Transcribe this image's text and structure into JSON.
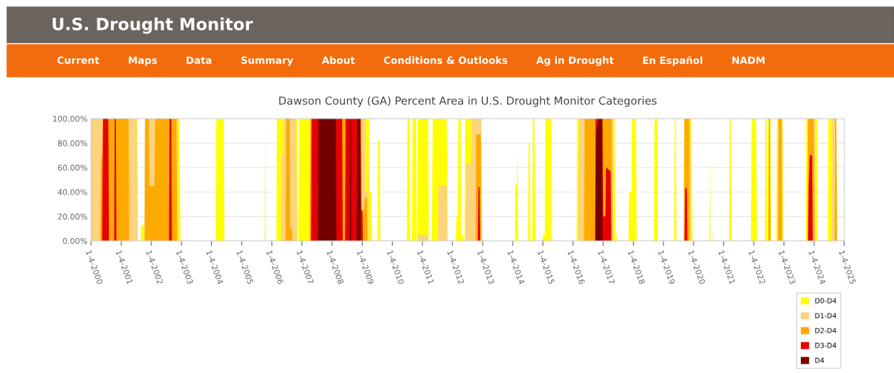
{
  "chart_data": {
    "type": "area",
    "title": "Dawson County (GA) Percent Area in U.S. Drought Monitor Categories",
    "annotations": [
      "U.S. Drought Monitor",
      "Current",
      "Maps",
      "Data",
      "Summary",
      "About",
      "Conditions & Outlooks",
      "Ag in Drought",
      "En Español",
      "NADM"
    ],
    "xlim": [
      "2000-01-04",
      "2025-01-04"
    ],
    "xticks": [
      {
        "value": "2000-01-04",
        "label": "1-4-2000"
      },
      {
        "value": "2001-01-04",
        "label": "1-4-2001"
      },
      {
        "value": "2002-01-04",
        "label": "1-4-2002"
      },
      {
        "value": "2003-01-04",
        "label": "1-4-2003"
      },
      {
        "value": "2004-01-04",
        "label": "1-4-2004"
      },
      {
        "value": "2005-01-04",
        "label": "1-4-2005"
      },
      {
        "value": "2006-01-04",
        "label": "1-4-2006"
      },
      {
        "value": "2007-01-04",
        "label": "1-4-2007"
      },
      {
        "value": "2008-01-04",
        "label": "1-4-2008"
      },
      {
        "value": "2009-01-04",
        "label": "1-4-2009"
      },
      {
        "value": "2010-01-04",
        "label": "1-4-2010"
      },
      {
        "value": "2011-01-04",
        "label": "1-4-2011"
      },
      {
        "value": "2012-01-04",
        "label": "1-4-2012"
      },
      {
        "value": "2013-01-04",
        "label": "1-4-2013"
      },
      {
        "value": "2014-01-04",
        "label": "1-4-2014"
      },
      {
        "value": "2015-01-04",
        "label": "1-4-2015"
      },
      {
        "value": "2016-01-04",
        "label": "1-4-2016"
      },
      {
        "value": "2017-01-04",
        "label": "1-4-2017"
      },
      {
        "value": "2018-01-04",
        "label": "1-4-2018"
      },
      {
        "value": "2019-01-04",
        "label": "1-4-2019"
      },
      {
        "value": "2020-01-04",
        "label": "1-4-2020"
      },
      {
        "value": "2021-01-04",
        "label": "1-4-2021"
      },
      {
        "value": "2022-01-04",
        "label": "1-4-2022"
      },
      {
        "value": "2023-01-04",
        "label": "1-4-2023"
      },
      {
        "value": "2024-01-04",
        "label": "1-4-2024"
      },
      {
        "value": "2025-01-04",
        "label": "1-4-2025"
      }
    ],
    "ylim": [
      0,
      100
    ],
    "yticks": [
      {
        "value": 0,
        "label": "0.00%"
      },
      {
        "value": 20,
        "label": "20.00%"
      },
      {
        "value": 40,
        "label": "40.00%"
      },
      {
        "value": 60,
        "label": "60.00%"
      },
      {
        "value": 80,
        "label": "80.00%"
      },
      {
        "value": 100,
        "label": "100.00%"
      }
    ],
    "grid": "y",
    "legend": "bottom right",
    "series": [
      {
        "name": "D0-D4",
        "color": "#ffff00",
        "x": [
          "2000-01-04",
          "2001-07-20",
          "2001-07-27",
          "2001-08-28",
          "2001-09-04",
          "2001-10-16",
          "2001-10-23",
          "2002-12-10",
          "2002-12-24",
          "2004-02-24",
          "2004-03-02",
          "2004-03-16",
          "2004-06-01",
          "2004-06-08",
          "2005-10-11",
          "2005-10-18",
          "2005-10-25",
          "2006-02-28",
          "2006-03-07",
          "2006-11-07",
          "2006-11-14",
          "2006-11-21",
          "2006-11-28",
          "2009-03-31",
          "2009-04-07",
          "2009-04-28",
          "2009-05-05",
          "2009-07-07",
          "2009-07-14",
          "2009-08-04",
          "2009-08-11",
          "2010-06-29",
          "2010-07-06",
          "2010-08-03",
          "2010-08-10",
          "2010-08-31",
          "2010-09-07",
          "2010-10-19",
          "2010-10-26",
          "2010-11-02",
          "2010-11-09",
          "2011-03-15",
          "2011-03-22",
          "2011-04-26",
          "2011-05-03",
          "2011-05-10",
          "2011-10-25",
          "2011-11-01",
          "2011-11-08",
          "2012-02-14",
          "2012-02-21",
          "2012-03-06",
          "2012-03-13",
          "2012-04-10",
          "2012-04-17",
          "2012-05-08",
          "2012-05-15",
          "2012-05-29",
          "2012-06-05",
          "2012-12-18",
          "2012-12-25",
          "2014-01-28",
          "2014-02-04",
          "2014-02-25",
          "2014-03-04",
          "2014-03-11",
          "2014-07-08",
          "2014-07-15",
          "2014-07-29",
          "2014-08-05",
          "2014-08-26",
          "2014-09-02",
          "2014-09-23",
          "2014-09-30",
          "2014-10-07",
          "2014-12-30",
          "2015-01-06",
          "2015-01-27",
          "2015-02-03",
          "2015-04-14",
          "2015-04-21",
          "2016-02-16",
          "2016-02-23",
          "2017-05-23",
          "2017-05-30",
          "2017-06-13",
          "2017-06-20",
          "2017-11-07",
          "2017-11-14",
          "2017-12-12",
          "2017-12-19",
          "2018-02-06",
          "2018-02-13",
          "2018-09-11",
          "2018-09-18",
          "2018-10-23",
          "2018-10-30",
          "2019-05-14",
          "2019-05-21",
          "2019-06-04",
          "2019-06-11",
          "2019-09-03",
          "2019-09-10",
          "2019-12-10",
          "2019-12-17",
          "2019-12-24",
          "2020-07-14",
          "2020-07-21",
          "2020-07-28",
          "2020-08-25",
          "2020-09-01",
          "2020-09-08",
          "2021-03-09",
          "2021-03-16",
          "2021-03-30",
          "2021-04-06",
          "2021-04-13",
          "2021-11-30",
          "2021-12-07",
          "2022-02-01",
          "2022-02-08",
          "2022-02-15",
          "2022-05-17",
          "2022-05-24",
          "2022-06-07",
          "2022-06-14",
          "2022-06-21",
          "2022-06-28",
          "2022-07-26",
          "2022-08-02",
          "2022-10-04",
          "2022-10-11",
          "2022-12-20",
          "2022-12-27",
          "2023-09-26",
          "2023-10-03",
          "2024-02-13",
          "2024-02-20",
          "2024-06-18",
          "2024-06-25",
          "2024-10-01",
          "2024-10-08",
          "2024-12-31"
        ],
        "values": [
          100,
          100,
          0,
          0,
          13,
          13,
          100,
          100,
          0,
          0,
          97,
          100,
          100,
          0,
          0,
          100,
          0,
          0,
          100,
          100,
          0,
          0,
          100,
          100,
          40,
          40,
          0,
          0,
          82,
          82,
          0,
          0,
          100,
          100,
          0,
          0,
          100,
          100,
          0,
          0,
          100,
          100,
          0,
          0,
          50,
          100,
          100,
          75,
          0,
          0,
          20,
          20,
          100,
          100,
          5,
          5,
          0,
          0,
          100,
          100,
          0,
          0,
          47,
          47,
          76,
          0,
          0,
          80,
          80,
          0,
          0,
          100,
          100,
          20,
          0,
          0,
          5,
          5,
          100,
          100,
          0,
          0,
          100,
          100,
          5,
          5,
          0,
          0,
          40,
          40,
          100,
          100,
          0,
          0,
          100,
          100,
          0,
          0,
          100,
          100,
          0,
          0,
          100,
          100,
          46,
          0,
          0,
          72,
          0,
          0,
          10,
          0,
          0,
          100,
          100,
          5,
          0,
          0,
          100,
          100,
          30,
          0,
          0,
          100,
          100,
          0,
          0,
          100,
          100,
          0,
          0,
          100,
          100,
          0,
          0,
          100,
          100,
          0,
          0,
          100,
          100,
          0,
          0
        ]
      },
      {
        "name": "D1-D4",
        "color": "#fcd37f",
        "x": [
          "2000-01-04",
          "2001-07-10",
          "2001-07-17",
          "2001-10-09",
          "2001-10-16",
          "2002-11-19",
          "2002-11-26",
          "2006-04-25",
          "2006-05-02",
          "2006-05-23",
          "2006-05-30",
          "2006-10-24",
          "2006-10-31",
          "2006-11-07",
          "2007-04-03",
          "2007-04-10",
          "2009-02-10",
          "2009-02-17",
          "2009-03-10",
          "2009-03-17",
          "2009-03-24",
          "2010-11-09",
          "2010-11-16",
          "2011-03-08",
          "2011-03-15",
          "2011-07-12",
          "2011-07-19",
          "2011-10-25",
          "2011-11-01",
          "2012-06-12",
          "2012-06-19",
          "2012-08-21",
          "2012-08-28",
          "2012-12-18",
          "2012-12-25",
          "2016-03-08",
          "2016-03-15",
          "2017-05-02",
          "2017-05-09",
          "2019-09-10",
          "2019-09-17",
          "2019-11-26",
          "2019-12-03",
          "2022-10-18",
          "2022-10-25",
          "2022-12-13",
          "2022-12-20",
          "2023-10-10",
          "2023-10-17",
          "2024-01-16",
          "2024-01-23",
          "2024-07-30",
          "2024-08-06",
          "2024-08-13",
          "2024-09-24",
          "2024-10-01"
        ],
        "values": [
          100,
          100,
          0,
          0,
          100,
          100,
          0,
          0,
          70,
          70,
          100,
          100,
          58,
          0,
          0,
          100,
          100,
          40,
          40,
          100,
          0,
          0,
          5,
          5,
          0,
          0,
          45,
          45,
          0,
          0,
          63,
          63,
          100,
          100,
          0,
          0,
          100,
          100,
          0,
          0,
          100,
          100,
          0,
          0,
          100,
          100,
          0,
          0,
          100,
          100,
          0,
          0,
          50,
          100,
          100,
          0
        ]
      },
      {
        "name": "D2-D4",
        "color": "#ffaa00",
        "x": [
          "2000-04-25",
          "2000-05-02",
          "2000-05-16",
          "2000-05-23",
          "2001-04-03",
          "2001-04-10",
          "2001-10-16",
          "2001-10-23",
          "2001-12-04",
          "2001-12-11",
          "2002-02-12",
          "2002-02-19",
          "2002-11-05",
          "2002-11-12",
          "2006-06-20",
          "2006-06-27",
          "2006-08-08",
          "2006-08-15",
          "2006-09-05",
          "2006-09-12",
          "2007-04-10",
          "2007-04-17",
          "2008-12-23",
          "2008-12-30",
          "2009-01-27",
          "2009-02-03",
          "2009-03-03",
          "2009-03-10",
          "2012-10-09",
          "2012-10-16",
          "2012-12-11",
          "2012-12-18",
          "2016-05-17",
          "2016-05-24",
          "2017-04-18",
          "2017-04-25",
          "2019-09-10",
          "2019-09-17",
          "2019-11-12",
          "2019-11-19",
          "2022-06-28",
          "2022-07-05",
          "2022-07-19",
          "2022-07-26",
          "2022-10-25",
          "2022-11-01",
          "2022-12-06",
          "2022-12-13",
          "2023-10-17",
          "2023-10-24",
          "2024-01-02",
          "2024-01-09",
          "2024-09-10",
          "2024-09-17",
          "2024-10-01",
          "2024-10-08"
        ],
        "values": [
          0,
          68,
          68,
          100,
          100,
          0,
          0,
          100,
          100,
          45,
          45,
          100,
          100,
          0,
          0,
          100,
          100,
          10,
          10,
          0,
          0,
          100,
          100,
          25,
          25,
          35,
          35,
          0,
          0,
          87,
          87,
          0,
          0,
          100,
          100,
          0,
          0,
          100,
          100,
          0,
          0,
          100,
          100,
          0,
          0,
          100,
          100,
          0,
          0,
          100,
          100,
          0,
          0,
          100,
          100,
          0
        ]
      },
      {
        "name": "D3-D4",
        "color": "#e60000",
        "x": [
          "2000-05-16",
          "2000-05-23",
          "2000-05-30",
          "2000-08-01",
          "2000-08-08",
          "2000-10-10",
          "2000-10-17",
          "2000-10-31",
          "2000-11-07",
          "2002-08-06",
          "2002-08-13",
          "2002-09-03",
          "2002-09-10",
          "2007-04-24",
          "2007-05-01",
          "2008-05-06",
          "2008-05-13",
          "2008-06-10",
          "2008-06-17",
          "2008-12-16",
          "2008-12-23",
          "2009-01-06",
          "2009-01-13",
          "2012-11-06",
          "2012-11-13",
          "2012-11-27",
          "2012-12-04",
          "2016-09-27",
          "2016-10-04",
          "2016-12-27",
          "2017-01-03",
          "2017-01-31",
          "2017-02-07",
          "2017-04-04",
          "2017-04-11",
          "2019-09-17",
          "2019-09-24",
          "2019-10-15",
          "2019-10-22",
          "2023-10-24",
          "2023-10-31",
          "2023-11-14",
          "2023-12-12",
          "2023-12-19"
        ],
        "values": [
          0,
          56,
          100,
          100,
          0,
          0,
          100,
          100,
          0,
          0,
          100,
          100,
          0,
          0,
          100,
          100,
          0,
          0,
          100,
          100,
          25,
          25,
          0,
          0,
          44,
          44,
          0,
          0,
          100,
          100,
          20,
          20,
          60,
          57,
          0,
          0,
          43,
          43,
          0,
          0,
          42,
          70,
          70,
          0
        ]
      },
      {
        "name": "D4",
        "color": "#730000",
        "x": [
          "2007-07-17",
          "2007-07-24",
          "2008-02-19",
          "2008-02-26",
          "2008-08-05",
          "2008-08-12",
          "2008-08-19",
          "2008-08-26",
          "2008-10-28",
          "2008-11-04",
          "2008-12-09",
          "2008-12-16",
          "2016-10-04",
          "2016-10-11",
          "2016-11-15",
          "2016-12-20",
          "2016-12-27"
        ],
        "values": [
          0,
          100,
          100,
          0,
          0,
          100,
          100,
          0,
          0,
          100,
          100,
          0,
          0,
          90,
          100,
          100,
          0
        ]
      }
    ]
  }
}
